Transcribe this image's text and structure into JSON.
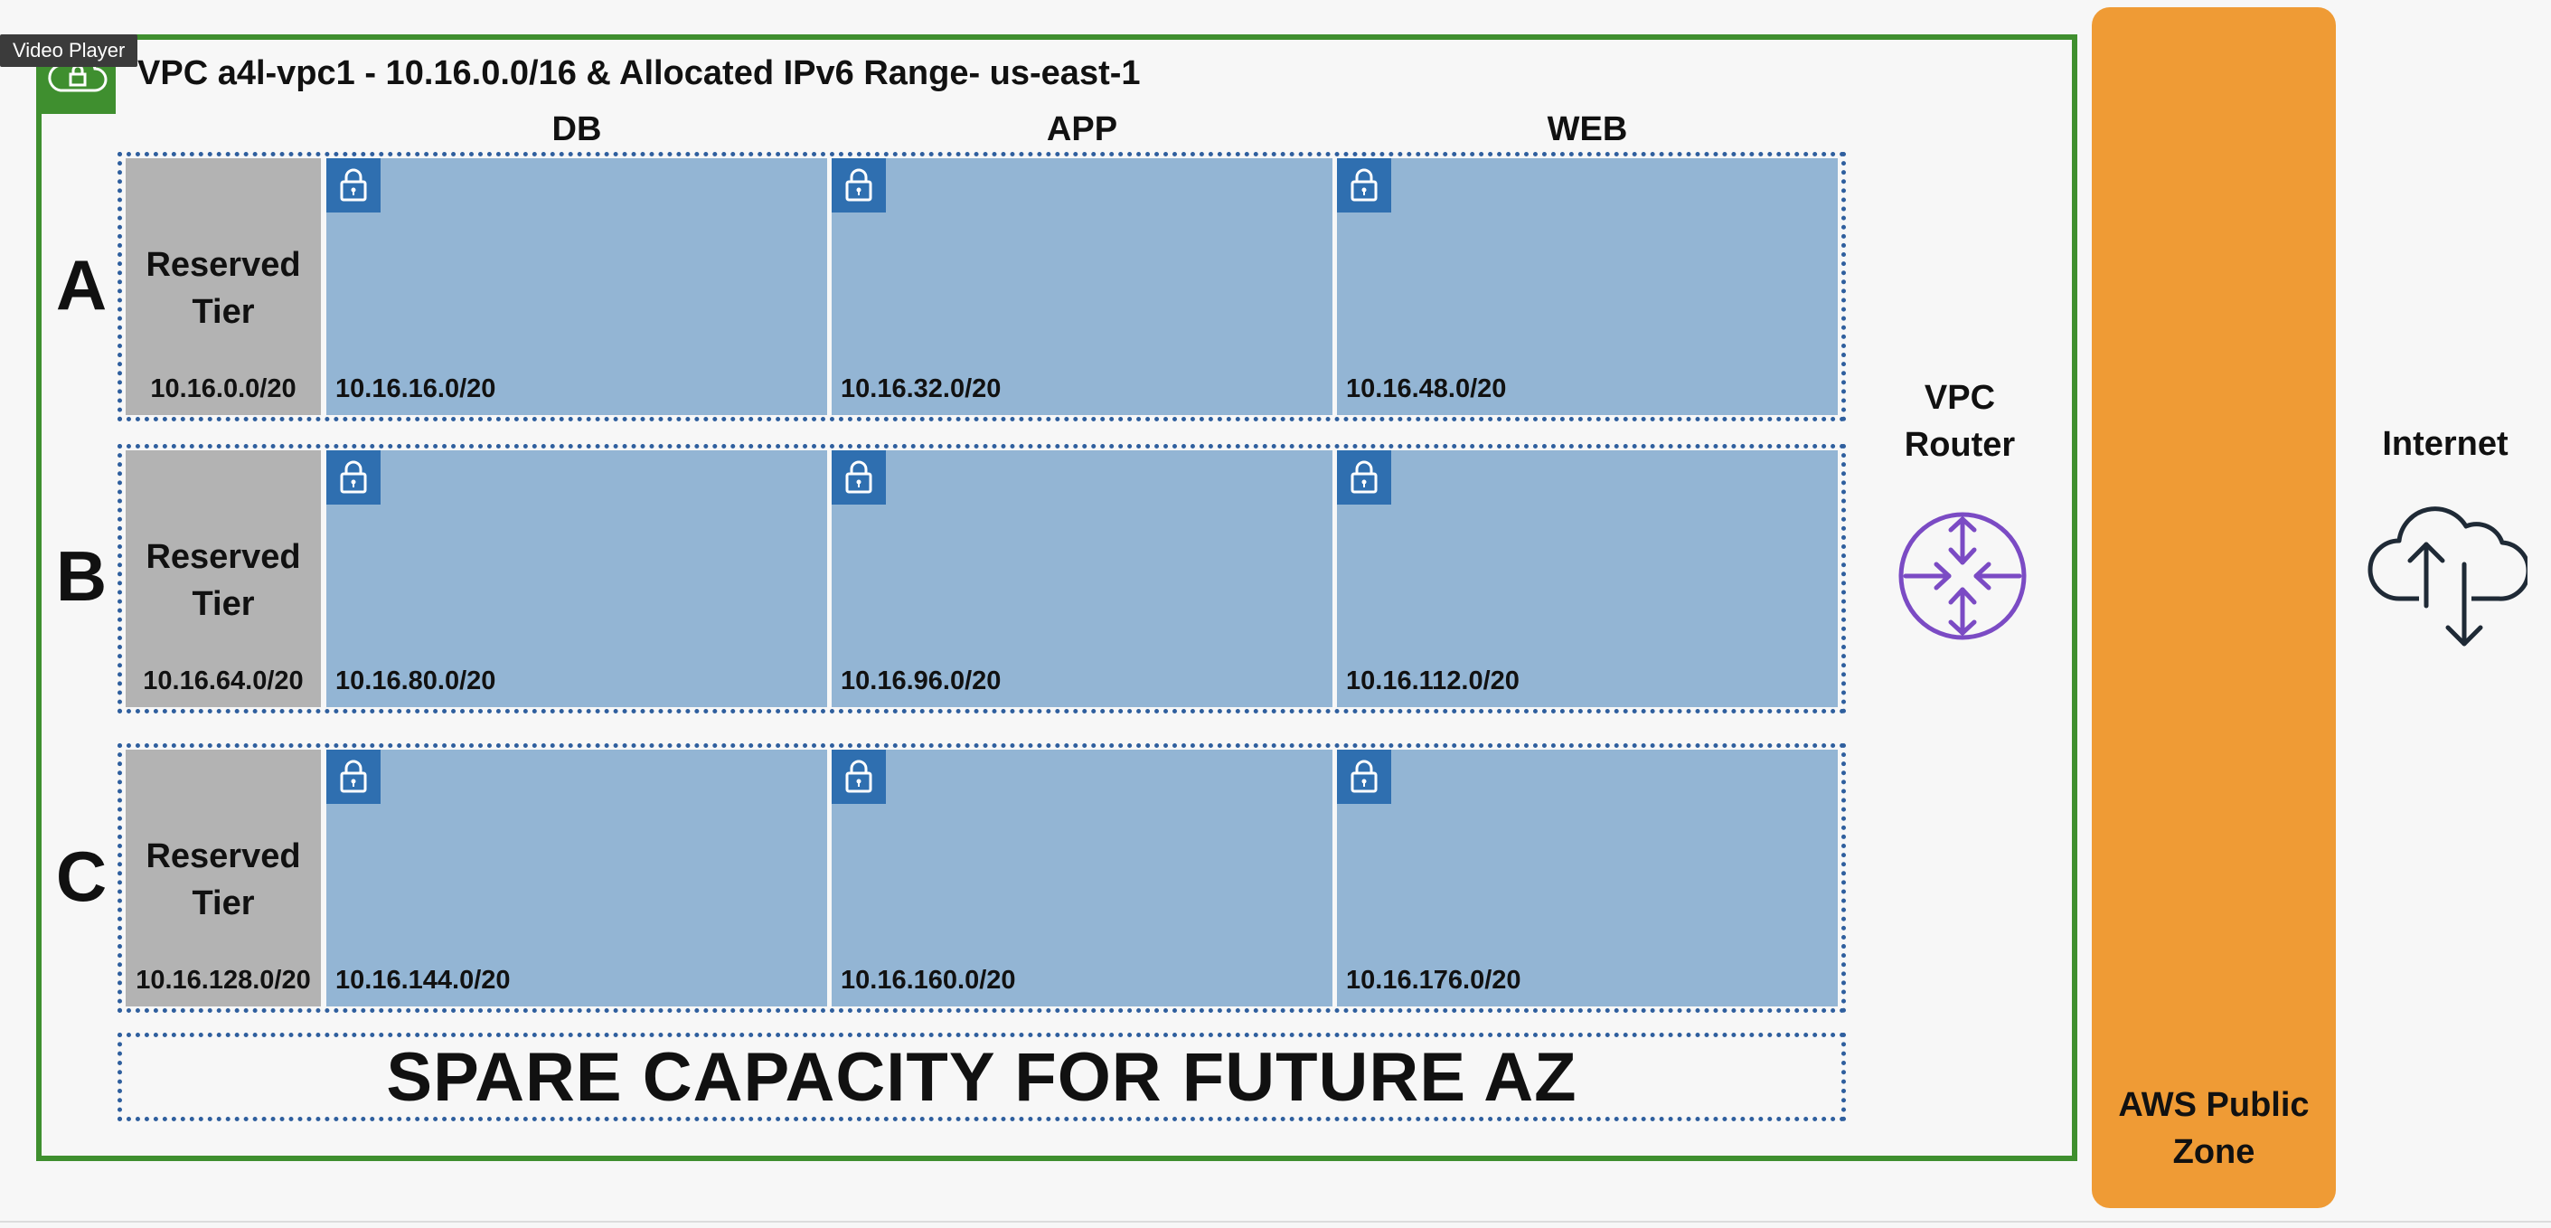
{
  "overlay": {
    "video_player_label": "Video Player"
  },
  "vpc": {
    "title": "VPC a4l-vpc1 - 10.16.0.0/16 & Allocated IPv6 Range- us-east-1",
    "columns": [
      "DB",
      "APP",
      "WEB"
    ],
    "reserved_label": "Reserved\nTier",
    "rows": [
      {
        "az": "A",
        "reserved_cidr": "10.16.0.0/20",
        "subnets": [
          "10.16.16.0/20",
          "10.16.32.0/20",
          "10.16.48.0/20"
        ]
      },
      {
        "az": "B",
        "reserved_cidr": "10.16.64.0/20",
        "subnets": [
          "10.16.80.0/20",
          "10.16.96.0/20",
          "10.16.112.0/20"
        ]
      },
      {
        "az": "C",
        "reserved_cidr": "10.16.128.0/20",
        "subnets": [
          "10.16.144.0/20",
          "10.16.160.0/20",
          "10.16.176.0/20"
        ]
      }
    ],
    "spare_capacity": "SPARE CAPACITY FOR FUTURE AZ"
  },
  "router": {
    "label": "VPC Router",
    "icon": "router-icon"
  },
  "public_zone": {
    "label": "AWS Public Zone"
  },
  "internet": {
    "label": "Internet",
    "icon": "cloud-upload-download-icon"
  },
  "colors": {
    "vpc_border": "#3f8f2f",
    "subnet_fill": "#93b5d4",
    "reserved_fill": "#b3b3b3",
    "lock_badge": "#2f6fb0",
    "public_zone": "#ef9b35",
    "router": "#7b4bc4"
  }
}
